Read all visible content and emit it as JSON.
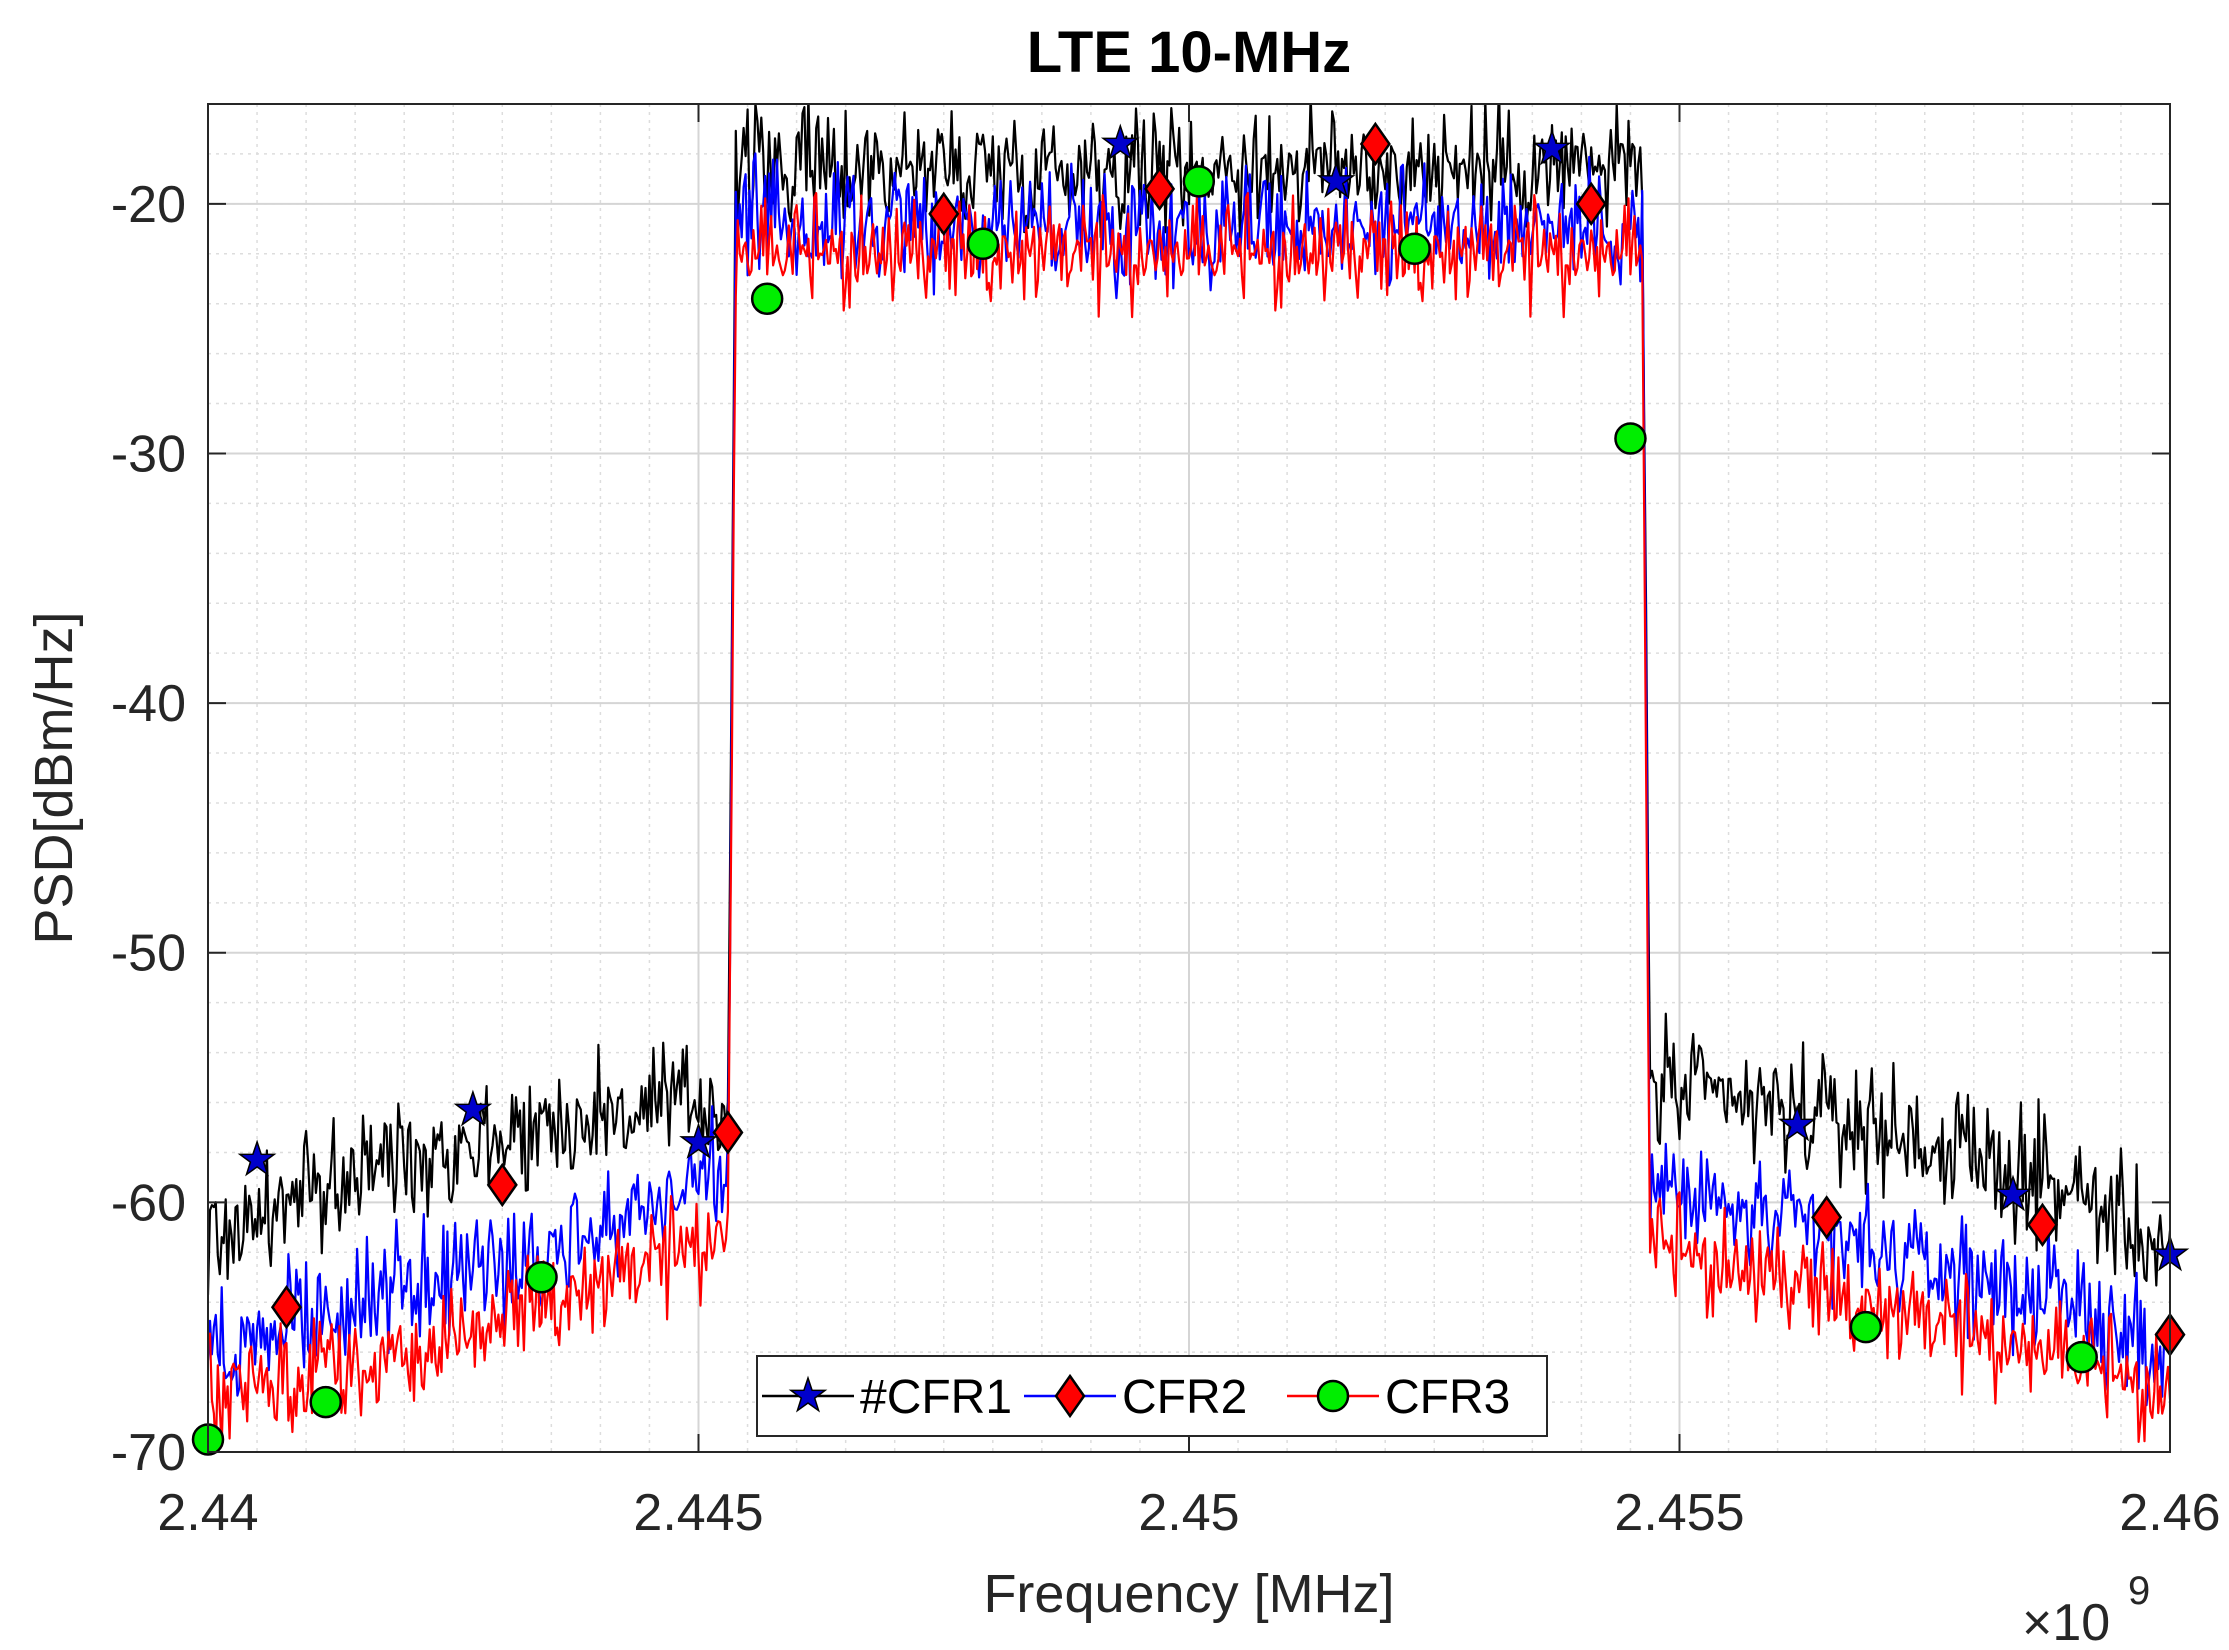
{
  "chart_data": {
    "type": "line",
    "title": "LTE 10-MHz",
    "xlabel": "Frequency [MHz]",
    "ylabel": "PSD[dBm/Hz]",
    "x_exponent_base": "×10",
    "x_exponent_power": "9",
    "xlim": [
      2.44,
      2.46
    ],
    "ylim": [
      -70,
      -16
    ],
    "xticks": [
      2.44,
      2.445,
      2.45,
      2.455,
      2.46
    ],
    "xtick_labels": [
      "2.44",
      "2.445",
      "2.45",
      "2.455",
      "2.46"
    ],
    "yticks": [
      -70,
      -60,
      -50,
      -40,
      -30,
      -20
    ],
    "ytick_labels": [
      "-70",
      "-60",
      "-50",
      "-40",
      "-30",
      "-20"
    ],
    "grid": true,
    "minor_grid": true,
    "legend_position": "bottom-center",
    "band_edges": [
      2.4453,
      2.4547
    ],
    "series": [
      {
        "name": "#CFR1",
        "color": "#000000",
        "marker": "star",
        "marker_color": "#0000cc",
        "inband_level": -18.5,
        "left_shoulder": [
          [
            2.44,
            -61.5
          ],
          [
            2.442,
            -58.0
          ],
          [
            2.444,
            -56.5
          ],
          [
            2.4452,
            -56.0
          ]
        ],
        "right_shoulder": [
          [
            2.4548,
            -55.5
          ],
          [
            2.457,
            -57.0
          ],
          [
            2.459,
            -59.5
          ],
          [
            2.46,
            -62.0
          ]
        ],
        "noise": 1.8,
        "markers": [
          [
            2.4405,
            -58.3
          ],
          [
            2.4427,
            -56.3
          ],
          [
            2.445,
            -57.6
          ],
          [
            2.4493,
            -17.6
          ],
          [
            2.4515,
            -19.1
          ],
          [
            2.4537,
            -17.8
          ],
          [
            2.4562,
            -56.9
          ],
          [
            2.4584,
            -59.7
          ],
          [
            2.46,
            -62.1
          ]
        ]
      },
      {
        "name": "CFR2",
        "color": "#0000ff",
        "marker": "diamond",
        "marker_color": "#ff0000",
        "inband_level": -20.8,
        "left_shoulder": [
          [
            2.44,
            -66.0
          ],
          [
            2.442,
            -63.5
          ],
          [
            2.444,
            -61.0
          ],
          [
            2.4452,
            -58.5
          ]
        ],
        "right_shoulder": [
          [
            2.4548,
            -59.5
          ],
          [
            2.457,
            -62.0
          ],
          [
            2.459,
            -64.0
          ],
          [
            2.46,
            -66.5
          ]
        ],
        "noise": 1.7,
        "markers": [
          [
            2.4408,
            -64.2
          ],
          [
            2.443,
            -59.3
          ],
          [
            2.4453,
            -57.2
          ],
          [
            2.4475,
            -20.4
          ],
          [
            2.4497,
            -19.4
          ],
          [
            2.4519,
            -17.6
          ],
          [
            2.4541,
            -20.0
          ],
          [
            2.4565,
            -60.6
          ],
          [
            2.4587,
            -60.9
          ],
          [
            2.46,
            -65.3
          ]
        ]
      },
      {
        "name": "CFR3",
        "color": "#ff0000",
        "marker": "circle",
        "marker_color": "#00ee00",
        "inband_level": -22.2,
        "left_shoulder": [
          [
            2.44,
            -68.0
          ],
          [
            2.442,
            -66.0
          ],
          [
            2.444,
            -63.5
          ],
          [
            2.4452,
            -61.5
          ]
        ],
        "right_shoulder": [
          [
            2.4548,
            -62.0
          ],
          [
            2.457,
            -64.5
          ],
          [
            2.459,
            -66.5
          ],
          [
            2.46,
            -68.0
          ]
        ],
        "noise": 1.6,
        "markers": [
          [
            2.44,
            -69.5
          ],
          [
            2.4412,
            -68.0
          ],
          [
            2.4434,
            -63.0
          ],
          [
            2.4457,
            -23.8
          ],
          [
            2.4479,
            -21.6
          ],
          [
            2.4501,
            -19.1
          ],
          [
            2.4523,
            -21.8
          ],
          [
            2.4545,
            -29.4
          ],
          [
            2.4569,
            -65.0
          ],
          [
            2.4591,
            -66.2
          ]
        ]
      }
    ]
  }
}
